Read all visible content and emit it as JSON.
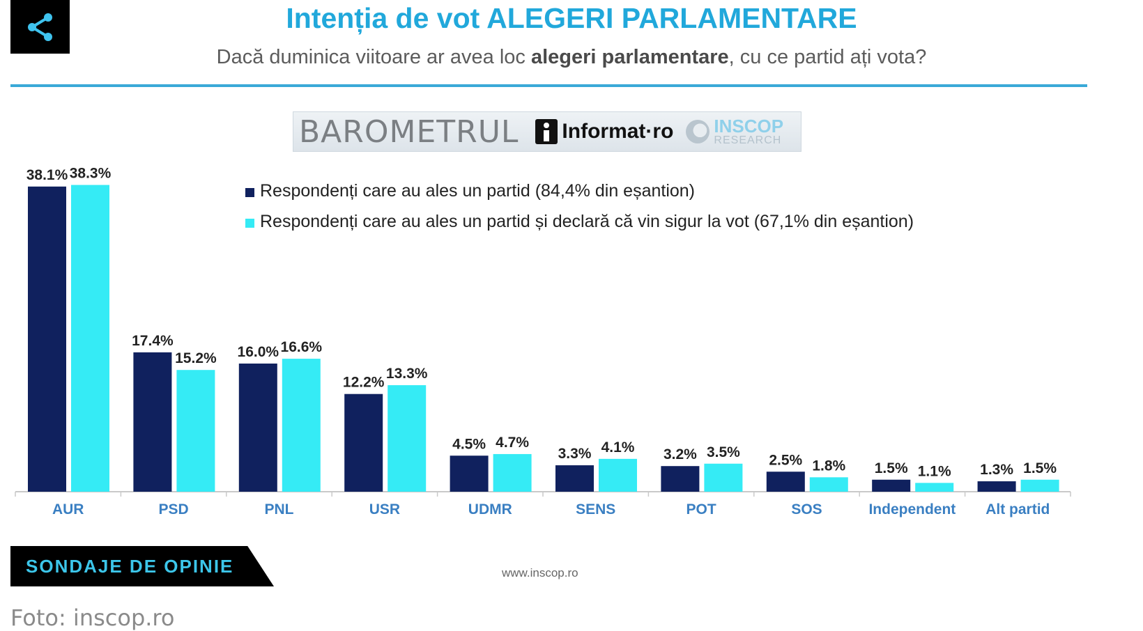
{
  "header": {
    "title": "Intenția de vot ALEGERI PARLAMENTARE",
    "subtitle_pre": "Dacă duminica viitoare ar avea loc ",
    "subtitle_bold": "alegeri parlamentare",
    "subtitle_post": ", cu ce partid ați vota?"
  },
  "barometer": {
    "label": "BAROMETRUL",
    "partner": "Informat·ro",
    "research_name": "INSCOP",
    "research_sub": "RESEARCH"
  },
  "footer": {
    "tag": "SONDAJE DE OPINIE",
    "url": "www.inscop.ro",
    "caption": "Foto: inscop.ro"
  },
  "icons": {
    "share": "share-icon"
  },
  "colors": {
    "series1": "#10215e",
    "series2": "#35ebf5",
    "accent": "#21a8db"
  },
  "chart_data": {
    "type": "bar",
    "title": "Intenția de vot ALEGERI PARLAMENTARE",
    "xlabel": "",
    "ylabel": "",
    "ylim": [
      0,
      40
    ],
    "grid": false,
    "legend_position": "top",
    "categories": [
      "AUR",
      "PSD",
      "PNL",
      "USR",
      "UDMR",
      "SENS",
      "POT",
      "SOS",
      "Independent",
      "Alt partid"
    ],
    "series": [
      {
        "name": "Respondenți care au ales un partid (84,4% din eșantion)",
        "values": [
          38.1,
          17.4,
          16.0,
          12.2,
          4.5,
          3.3,
          3.2,
          2.5,
          1.5,
          1.3
        ],
        "labels": [
          "38.1%",
          "17.4%",
          "16.0%",
          "12.2%",
          "4.5%",
          "3.3%",
          "3.2%",
          "2.5%",
          "1.5%",
          "1.3%"
        ]
      },
      {
        "name": "Respondenți care au ales un partid și declară că vin sigur la vot (67,1% din eșantion)",
        "values": [
          38.3,
          15.2,
          16.6,
          13.3,
          4.7,
          4.1,
          3.5,
          1.8,
          1.1,
          1.5
        ],
        "labels": [
          "38.3%",
          "15.2%",
          "16.6%",
          "13.3%",
          "4.7%",
          "4.1%",
          "3.5%",
          "1.8%",
          "1.1%",
          "1.5%"
        ]
      }
    ]
  }
}
